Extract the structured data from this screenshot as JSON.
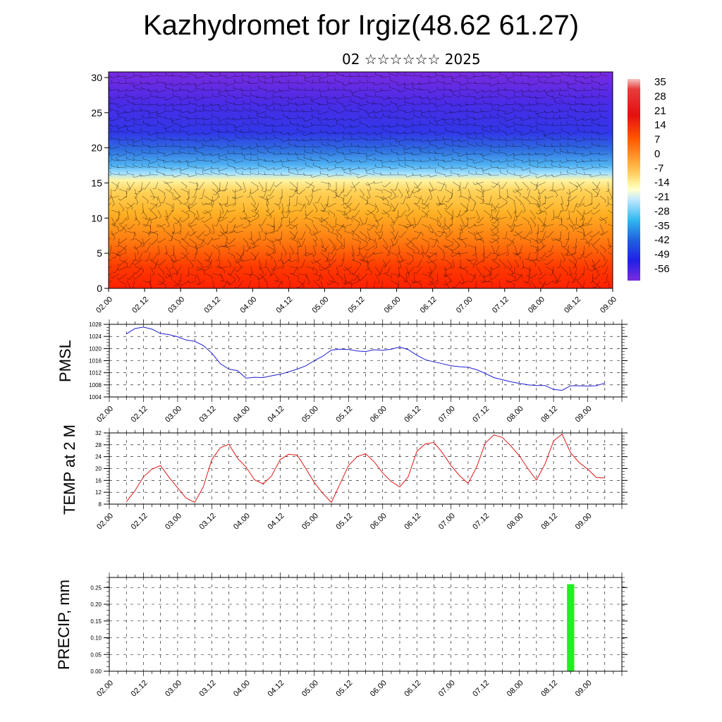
{
  "title": "Kazhydromet for Irgiz(48.62 61.27)",
  "subtitle": "02 ☆☆☆☆☆☆ 2025",
  "time_ticks": [
    "02.00",
    "02.12",
    "03.00",
    "03.12",
    "04.00",
    "04.12",
    "05.00",
    "05.12",
    "06.00",
    "06.12",
    "07.00",
    "07.12",
    "08.00",
    "08.12",
    "09.00"
  ],
  "chart_data": [
    {
      "type": "heatmap",
      "name": "vertical-temperature-wind",
      "y_ticks": [
        0,
        5,
        10,
        15,
        20,
        25,
        30
      ],
      "ylim": [
        0,
        30.8
      ],
      "colorbar_labels": [
        "35",
        "28",
        "21",
        "14",
        "7",
        "0",
        "-7",
        "-14",
        "-21",
        "-28",
        "-35",
        "-42",
        "-49",
        "-56"
      ],
      "colors": {
        "top": "#7a2be0",
        "upper": "#3a30e8",
        "tropopause": "#2f7de0",
        "mid": "#8fd8ff",
        "transition": "#fff19a",
        "lower": "#ffb12b",
        "surface": "#ff2a00"
      },
      "wind_barbs": true
    },
    {
      "type": "line",
      "name": "pmsl",
      "ylabel": "PMSL",
      "ylim": [
        1004,
        1028
      ],
      "y_ticks": [
        1004,
        1008,
        1012,
        1016,
        1020,
        1024,
        1028
      ],
      "color": "#1f1fd6",
      "x": [
        0,
        3,
        6,
        9,
        12,
        15,
        18,
        21,
        24,
        27,
        30,
        33,
        36,
        39,
        42,
        45,
        48,
        51,
        54,
        57,
        60,
        63,
        66,
        69,
        72,
        75,
        78,
        81,
        84,
        87,
        90,
        93,
        96,
        99,
        102,
        105,
        108,
        111,
        114,
        117,
        120,
        123,
        126,
        129,
        132,
        135,
        138,
        141,
        144,
        147,
        150,
        153,
        156,
        159,
        162,
        165,
        168
      ],
      "values": [
        1024.8,
        1026.6,
        1027.1,
        1026.4,
        1025.0,
        1024.6,
        1023.9,
        1022.8,
        1022.4,
        1021.0,
        1018.5,
        1015.0,
        1013.2,
        1012.7,
        1010.2,
        1010.5,
        1010.4,
        1011.0,
        1011.5,
        1012.3,
        1013.2,
        1014.3,
        1016.0,
        1017.5,
        1019.5,
        1019.8,
        1019.7,
        1019.2,
        1019.0,
        1019.6,
        1019.4,
        1019.8,
        1020.5,
        1019.6,
        1017.8,
        1016.3,
        1015.6,
        1015.0,
        1014.3,
        1014.0,
        1013.8,
        1013.0,
        1011.8,
        1010.4,
        1009.7,
        1009.0,
        1008.5,
        1008.0,
        1007.8,
        1007.8,
        1006.5,
        1006.2,
        1007.7,
        1007.7,
        1007.6,
        1007.7,
        1008.6
      ]
    },
    {
      "type": "line",
      "name": "temp-2m",
      "ylabel": "TEMP at 2 M",
      "ylim": [
        8,
        32
      ],
      "y_ticks": [
        8,
        12,
        16,
        20,
        24,
        28,
        32
      ],
      "color": "#e01818",
      "x": [
        0,
        3,
        6,
        9,
        12,
        15,
        18,
        21,
        24,
        27,
        30,
        33,
        36,
        39,
        42,
        45,
        48,
        51,
        54,
        57,
        60,
        63,
        66,
        69,
        72,
        75,
        78,
        81,
        84,
        87,
        90,
        93,
        96,
        99,
        102,
        105,
        108,
        111,
        114,
        117,
        120,
        123,
        126,
        129,
        132,
        135,
        138,
        141,
        144,
        147,
        150,
        153,
        156,
        159,
        162,
        165,
        168
      ],
      "values": [
        8.8,
        12.5,
        17.2,
        19.8,
        21.0,
        17.0,
        13.5,
        10.0,
        8.6,
        13.8,
        23.0,
        27.0,
        28.2,
        23.5,
        20.5,
        16.2,
        14.8,
        17.5,
        23.0,
        24.8,
        24.5,
        20.0,
        15.3,
        11.6,
        8.6,
        14.8,
        21.0,
        24.0,
        25.0,
        22.3,
        18.5,
        15.6,
        13.8,
        17.3,
        25.8,
        28.3,
        28.8,
        25.3,
        21.0,
        17.6,
        15.0,
        20.5,
        28.5,
        31.3,
        30.5,
        27.6,
        24.3,
        20.0,
        16.1,
        21.5,
        29.3,
        31.6,
        25.3,
        22.0,
        19.8,
        17.0,
        16.8
      ]
    },
    {
      "type": "bar",
      "name": "precip",
      "ylabel": "PRECIP, mm",
      "ylim": [
        0,
        0.28
      ],
      "y_ticks": [
        "0.00",
        "0.05",
        "0.10",
        "0.15",
        "0.20",
        "0.25"
      ],
      "color": "#22ee22",
      "x": [
        156
      ],
      "values": [
        0.26
      ]
    }
  ]
}
